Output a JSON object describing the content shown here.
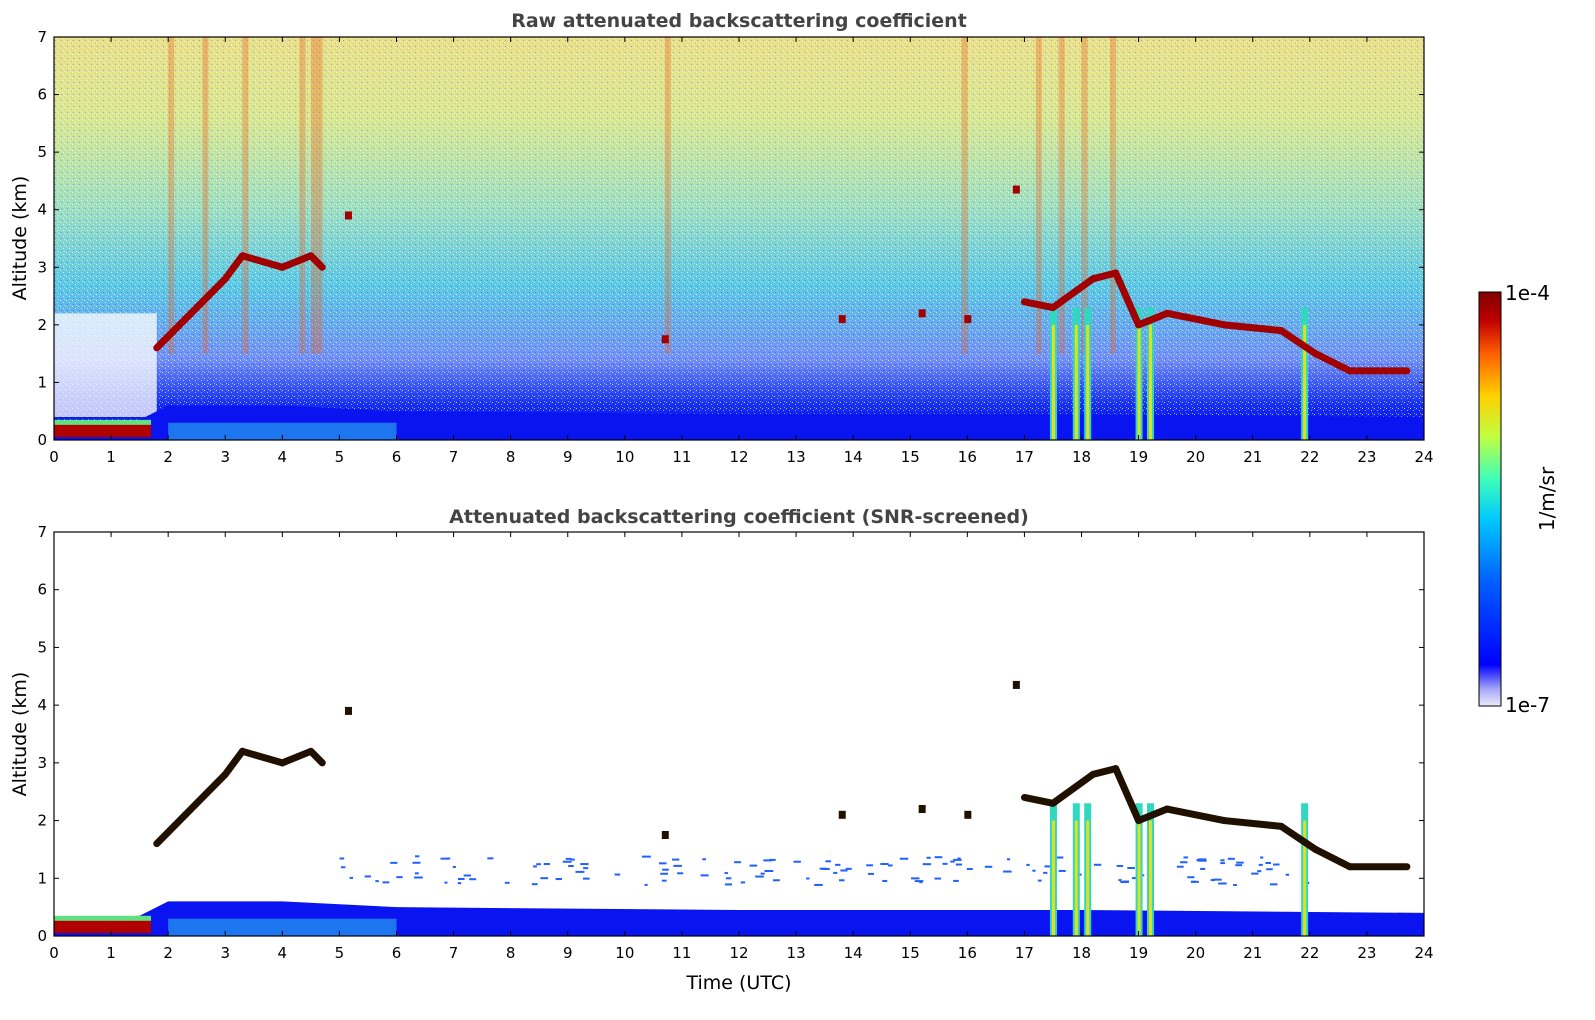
{
  "chart_data": [
    {
      "type": "heatmap",
      "title": "Raw attenuated backscattering coefficient",
      "xlabel": "",
      "ylabel": "Altitude (km)",
      "xlim": [
        0,
        24
      ],
      "ylim": [
        0,
        7
      ],
      "xticks": [
        "0",
        "1",
        "2",
        "3",
        "4",
        "5",
        "6",
        "7",
        "8",
        "9",
        "10",
        "11",
        "12",
        "13",
        "14",
        "15",
        "16",
        "17",
        "18",
        "19",
        "20",
        "21",
        "22",
        "23",
        "24"
      ],
      "yticks": [
        "0",
        "1",
        "2",
        "3",
        "4",
        "5",
        "6",
        "7"
      ],
      "features": {
        "boundary_layer_top_km": [
          [
            0,
            0.3
          ],
          [
            1.5,
            0.35
          ],
          [
            2,
            0.6
          ],
          [
            4,
            0.6
          ],
          [
            6,
            0.5
          ],
          [
            12,
            0.45
          ],
          [
            18,
            0.45
          ],
          [
            24,
            0.4
          ]
        ],
        "cloud_layer_ascending": [
          [
            1.8,
            1.6
          ],
          [
            2.3,
            2.1
          ],
          [
            3.0,
            2.8
          ],
          [
            3.3,
            3.2
          ],
          [
            4.0,
            3.0
          ],
          [
            4.5,
            3.2
          ],
          [
            4.7,
            3.0
          ]
        ],
        "cloud_layer_evening": [
          [
            17.0,
            2.4
          ],
          [
            17.5,
            2.3
          ],
          [
            18.2,
            2.8
          ],
          [
            18.6,
            2.9
          ],
          [
            19.0,
            2.0
          ],
          [
            19.5,
            2.2
          ],
          [
            20.5,
            2.0
          ],
          [
            21.5,
            1.9
          ],
          [
            22.1,
            1.5
          ],
          [
            22.7,
            1.2
          ],
          [
            23.7,
            1.2
          ]
        ],
        "precipitation_columns_hours": [
          17.5,
          17.9,
          18.1,
          19.0,
          19.2,
          21.9
        ]
      }
    },
    {
      "type": "heatmap",
      "title": "Attenuated backscattering coefficient (SNR-screened)",
      "xlabel": "Time (UTC)",
      "ylabel": "Altitude (km)",
      "xlim": [
        0,
        24
      ],
      "ylim": [
        0,
        7
      ],
      "xticks": [
        "0",
        "1",
        "2",
        "3",
        "4",
        "5",
        "6",
        "7",
        "8",
        "9",
        "10",
        "11",
        "12",
        "13",
        "14",
        "15",
        "16",
        "17",
        "18",
        "19",
        "20",
        "21",
        "22",
        "23",
        "24"
      ],
      "yticks": [
        "0",
        "1",
        "2",
        "3",
        "4",
        "5",
        "6",
        "7"
      ]
    }
  ],
  "colorbar": {
    "label": "1/m/sr",
    "max_label": "1e-4",
    "min_label": "1e-7",
    "colors": [
      "#ecebfa",
      "#6f6ffa",
      "#0000ff",
      "#005fff",
      "#00c8ff",
      "#40ffb8",
      "#c0ff40",
      "#ffd000",
      "#ff6000",
      "#c00000",
      "#800000"
    ]
  }
}
